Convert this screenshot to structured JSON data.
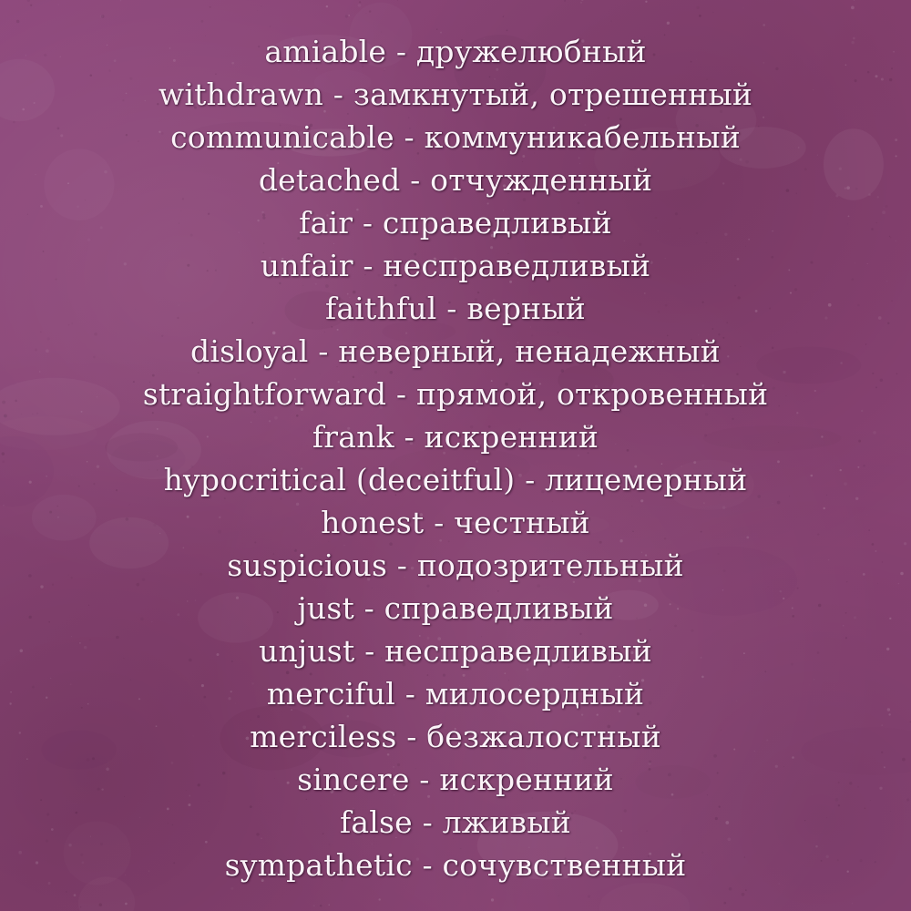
{
  "background": {
    "base_color": "#8a4478",
    "text_color": "#fbf3f8",
    "texture": "grunge"
  },
  "vocabulary": [
    {
      "en": "amiable",
      "ru": "дружелюбный"
    },
    {
      "en": "withdrawn",
      "ru": "замкнутый, отрешенный"
    },
    {
      "en": "communicable",
      "ru": "коммуникабельный"
    },
    {
      "en": "detached",
      "ru": "отчужденный"
    },
    {
      "en": "fair",
      "ru": "справедливый"
    },
    {
      "en": "unfair",
      "ru": "несправедливый"
    },
    {
      "en": "faithful",
      "ru": "верный"
    },
    {
      "en": "disloyal",
      "ru": "неверный, ненадежный"
    },
    {
      "en": "straightforward",
      "ru": "прямой, откровенный"
    },
    {
      "en": "frank",
      "ru": "искренний"
    },
    {
      "en": "hypocritical (deceitful)",
      "ru": "лицемерный"
    },
    {
      "en": "honest",
      "ru": "честный"
    },
    {
      "en": "suspicious",
      "ru": "подозрительный"
    },
    {
      "en": "just",
      "ru": "справедливый"
    },
    {
      "en": "unjust",
      "ru": "несправедливый"
    },
    {
      "en": "merciful",
      "ru": "милосердный"
    },
    {
      "en": "merciless",
      "ru": "безжалостный"
    },
    {
      "en": "sincere",
      "ru": "искренний"
    },
    {
      "en": "false",
      "ru": "лживый"
    },
    {
      "en": "sympathetic",
      "ru": "сочувственный"
    }
  ],
  "separator": " - "
}
